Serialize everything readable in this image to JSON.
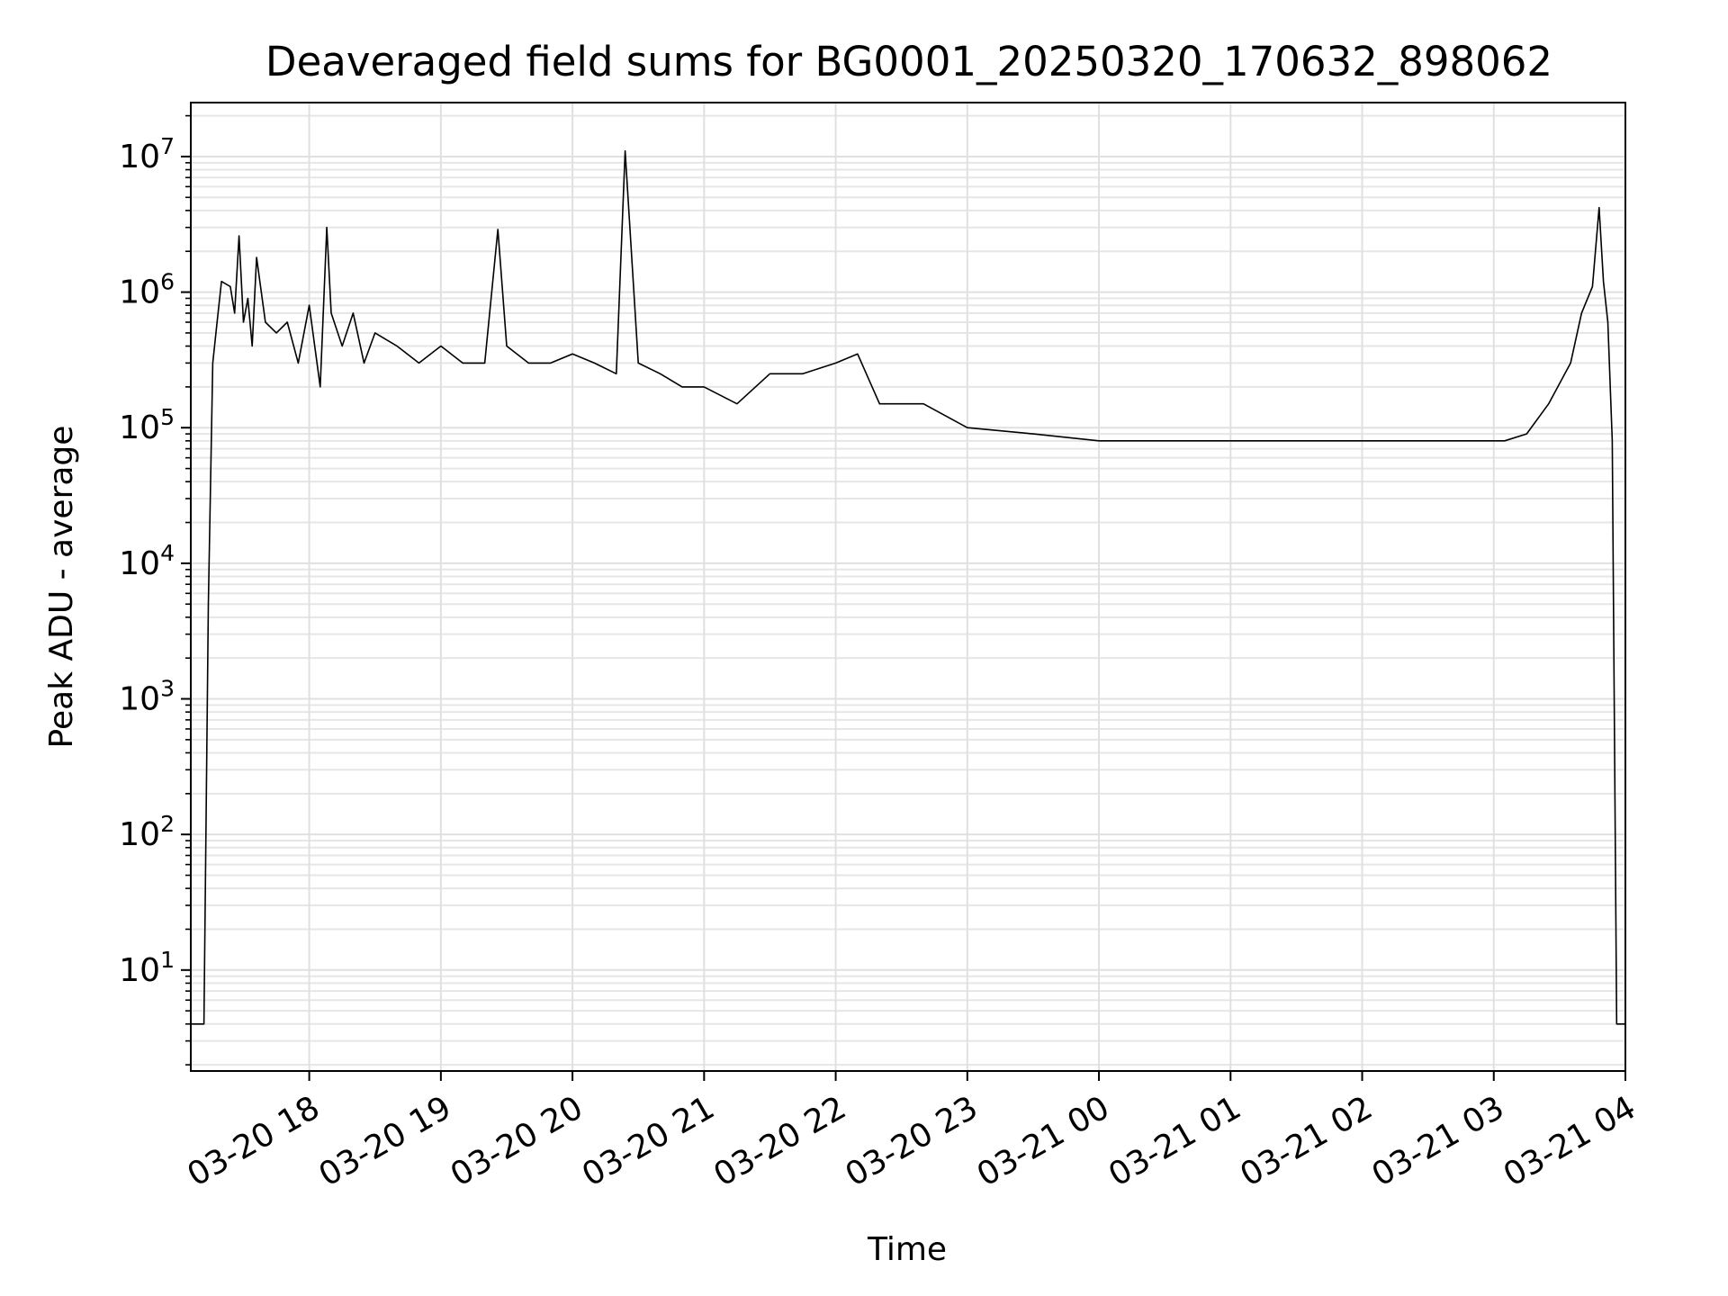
{
  "chart_data": {
    "type": "line",
    "title": "Deaveraged field sums for BG0001_20250320_170632_898062",
    "xlabel": "Time",
    "ylabel": "Peak ADU - average",
    "xscale": "time",
    "yscale": "log",
    "xlim": [
      "2025-03-20 17:06",
      "2025-03-21 04:00"
    ],
    "ylim": [
      1.8,
      25000000.0
    ],
    "grid": "on (major and minor)",
    "legend": "none",
    "line_color": "#000000",
    "xticks": [
      {
        "t": "2025-03-20 18:00",
        "label": "03-20 18"
      },
      {
        "t": "2025-03-20 19:00",
        "label": "03-20 19"
      },
      {
        "t": "2025-03-20 20:00",
        "label": "03-20 20"
      },
      {
        "t": "2025-03-20 21:00",
        "label": "03-20 21"
      },
      {
        "t": "2025-03-20 22:00",
        "label": "03-20 22"
      },
      {
        "t": "2025-03-20 23:00",
        "label": "03-20 23"
      },
      {
        "t": "2025-03-21 00:00",
        "label": "03-21 00"
      },
      {
        "t": "2025-03-21 01:00",
        "label": "03-21 01"
      },
      {
        "t": "2025-03-21 02:00",
        "label": "03-21 02"
      },
      {
        "t": "2025-03-21 03:00",
        "label": "03-21 03"
      },
      {
        "t": "2025-03-21 04:00",
        "label": "03-21 04"
      }
    ],
    "yticks": [
      {
        "value": 10,
        "base": "10",
        "exp": "1"
      },
      {
        "value": 100,
        "base": "10",
        "exp": "2"
      },
      {
        "value": 1000,
        "base": "10",
        "exp": "3"
      },
      {
        "value": 10000,
        "base": "10",
        "exp": "4"
      },
      {
        "value": 100000,
        "base": "10",
        "exp": "5"
      },
      {
        "value": 1000000,
        "base": "10",
        "exp": "6"
      },
      {
        "value": 10000000,
        "base": "10",
        "exp": "7"
      }
    ],
    "series": [
      {
        "x": [
          "2025-03-20 17:06",
          "2025-03-20 17:10",
          "2025-03-20 17:12",
          "2025-03-20 17:14",
          "2025-03-20 17:16",
          "2025-03-20 17:18",
          "2025-03-20 17:20",
          "2025-03-20 17:24",
          "2025-03-20 17:26",
          "2025-03-20 17:28",
          "2025-03-20 17:30",
          "2025-03-20 17:32",
          "2025-03-20 17:34",
          "2025-03-20 17:36",
          "2025-03-20 17:40",
          "2025-03-20 17:45",
          "2025-03-20 17:50",
          "2025-03-20 17:55",
          "2025-03-20 18:00",
          "2025-03-20 18:05",
          "2025-03-20 18:08",
          "2025-03-20 18:10",
          "2025-03-20 18:15",
          "2025-03-20 18:20",
          "2025-03-20 18:25",
          "2025-03-20 18:30",
          "2025-03-20 18:40",
          "2025-03-20 18:50",
          "2025-03-20 19:00",
          "2025-03-20 19:10",
          "2025-03-20 19:20",
          "2025-03-20 19:26",
          "2025-03-20 19:30",
          "2025-03-20 19:40",
          "2025-03-20 19:50",
          "2025-03-20 20:00",
          "2025-03-20 20:10",
          "2025-03-20 20:20",
          "2025-03-20 20:24",
          "2025-03-20 20:30",
          "2025-03-20 20:40",
          "2025-03-20 20:50",
          "2025-03-20 21:00",
          "2025-03-20 21:15",
          "2025-03-20 21:30",
          "2025-03-20 21:45",
          "2025-03-20 22:00",
          "2025-03-20 22:10",
          "2025-03-20 22:20",
          "2025-03-20 22:40",
          "2025-03-20 23:00",
          "2025-03-20 23:30",
          "2025-03-21 00:00",
          "2025-03-21 00:30",
          "2025-03-21 01:00",
          "2025-03-21 01:30",
          "2025-03-21 02:00",
          "2025-03-21 02:30",
          "2025-03-21 02:50",
          "2025-03-21 03:05",
          "2025-03-21 03:15",
          "2025-03-21 03:25",
          "2025-03-21 03:35",
          "2025-03-21 03:40",
          "2025-03-21 03:45",
          "2025-03-21 03:48",
          "2025-03-21 03:50",
          "2025-03-21 03:52",
          "2025-03-21 03:54",
          "2025-03-21 03:56",
          "2025-03-21 03:58",
          "2025-03-21 04:00"
        ],
        "y": [
          4,
          4,
          4,
          5000,
          300000,
          600000,
          1200000,
          1100000,
          700000,
          2600000,
          600000,
          900000,
          400000,
          1800000,
          600000,
          500000,
          600000,
          300000,
          800000,
          200000,
          3000000,
          700000,
          400000,
          700000,
          300000,
          500000,
          400000,
          300000,
          400000,
          300000,
          300000,
          2900000,
          400000,
          300000,
          300000,
          350000,
          300000,
          250000,
          11000000,
          300000,
          250000,
          200000,
          200000,
          150000,
          250000,
          250000,
          300000,
          350000,
          150000,
          150000,
          100000,
          90000,
          80000,
          80000,
          80000,
          80000,
          80000,
          80000,
          80000,
          80000,
          90000,
          150000,
          300000,
          700000,
          1100000,
          4200000,
          1200000,
          600000,
          80000,
          4,
          4,
          4
        ]
      }
    ]
  }
}
